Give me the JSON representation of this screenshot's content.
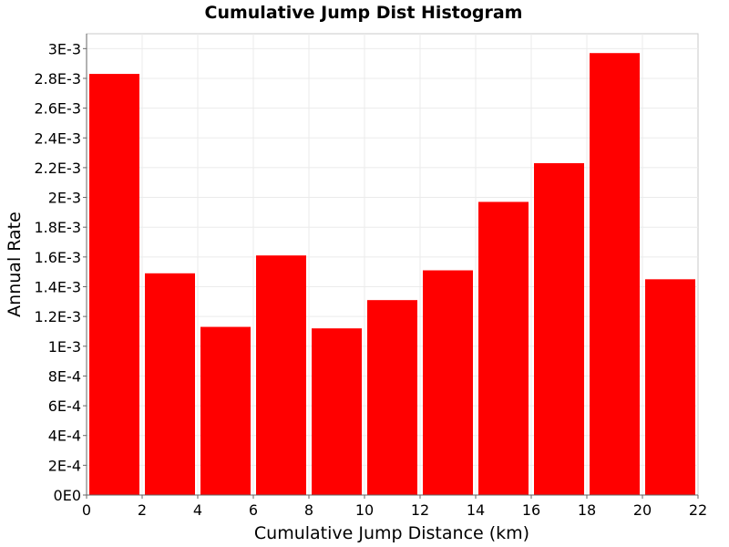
{
  "chart_data": {
    "type": "bar",
    "title": "Cumulative Jump Dist Histogram",
    "xlabel": "Cumulative Jump Distance (km)",
    "ylabel": "Annual Rate",
    "xlim": [
      0,
      22
    ],
    "ylim": [
      0,
      0.0031
    ],
    "x_ticks": [
      0,
      2,
      4,
      6,
      8,
      10,
      12,
      14,
      16,
      18,
      20,
      22
    ],
    "x_tick_labels": [
      "0",
      "2",
      "4",
      "6",
      "8",
      "10",
      "12",
      "14",
      "16",
      "18",
      "20",
      "22"
    ],
    "y_ticks": [
      0,
      0.0002,
      0.0004,
      0.0006,
      0.0008,
      0.001,
      0.0012,
      0.0014,
      0.0016,
      0.0018,
      0.002,
      0.0022,
      0.0024,
      0.0026,
      0.0028,
      0.003
    ],
    "y_tick_labels": [
      "0E0",
      "2E-4",
      "4E-4",
      "6E-4",
      "8E-4",
      "1E-3",
      "1.2E-3",
      "1.4E-3",
      "1.6E-3",
      "1.8E-3",
      "2E-3",
      "2.2E-3",
      "2.4E-3",
      "2.6E-3",
      "2.8E-3",
      "3E-3"
    ],
    "bin_width": 2,
    "bins": [
      {
        "x_start": 0,
        "value": 0.00283
      },
      {
        "x_start": 2,
        "value": 0.00149
      },
      {
        "x_start": 4,
        "value": 0.00113
      },
      {
        "x_start": 6,
        "value": 0.00161
      },
      {
        "x_start": 8,
        "value": 0.00112
      },
      {
        "x_start": 10,
        "value": 0.00131
      },
      {
        "x_start": 12,
        "value": 0.00151
      },
      {
        "x_start": 14,
        "value": 0.00197
      },
      {
        "x_start": 16,
        "value": 0.00223
      },
      {
        "x_start": 18,
        "value": 0.00297
      },
      {
        "x_start": 20,
        "value": 0.00145
      }
    ],
    "grid": true,
    "bar_color": "#ff0000"
  }
}
